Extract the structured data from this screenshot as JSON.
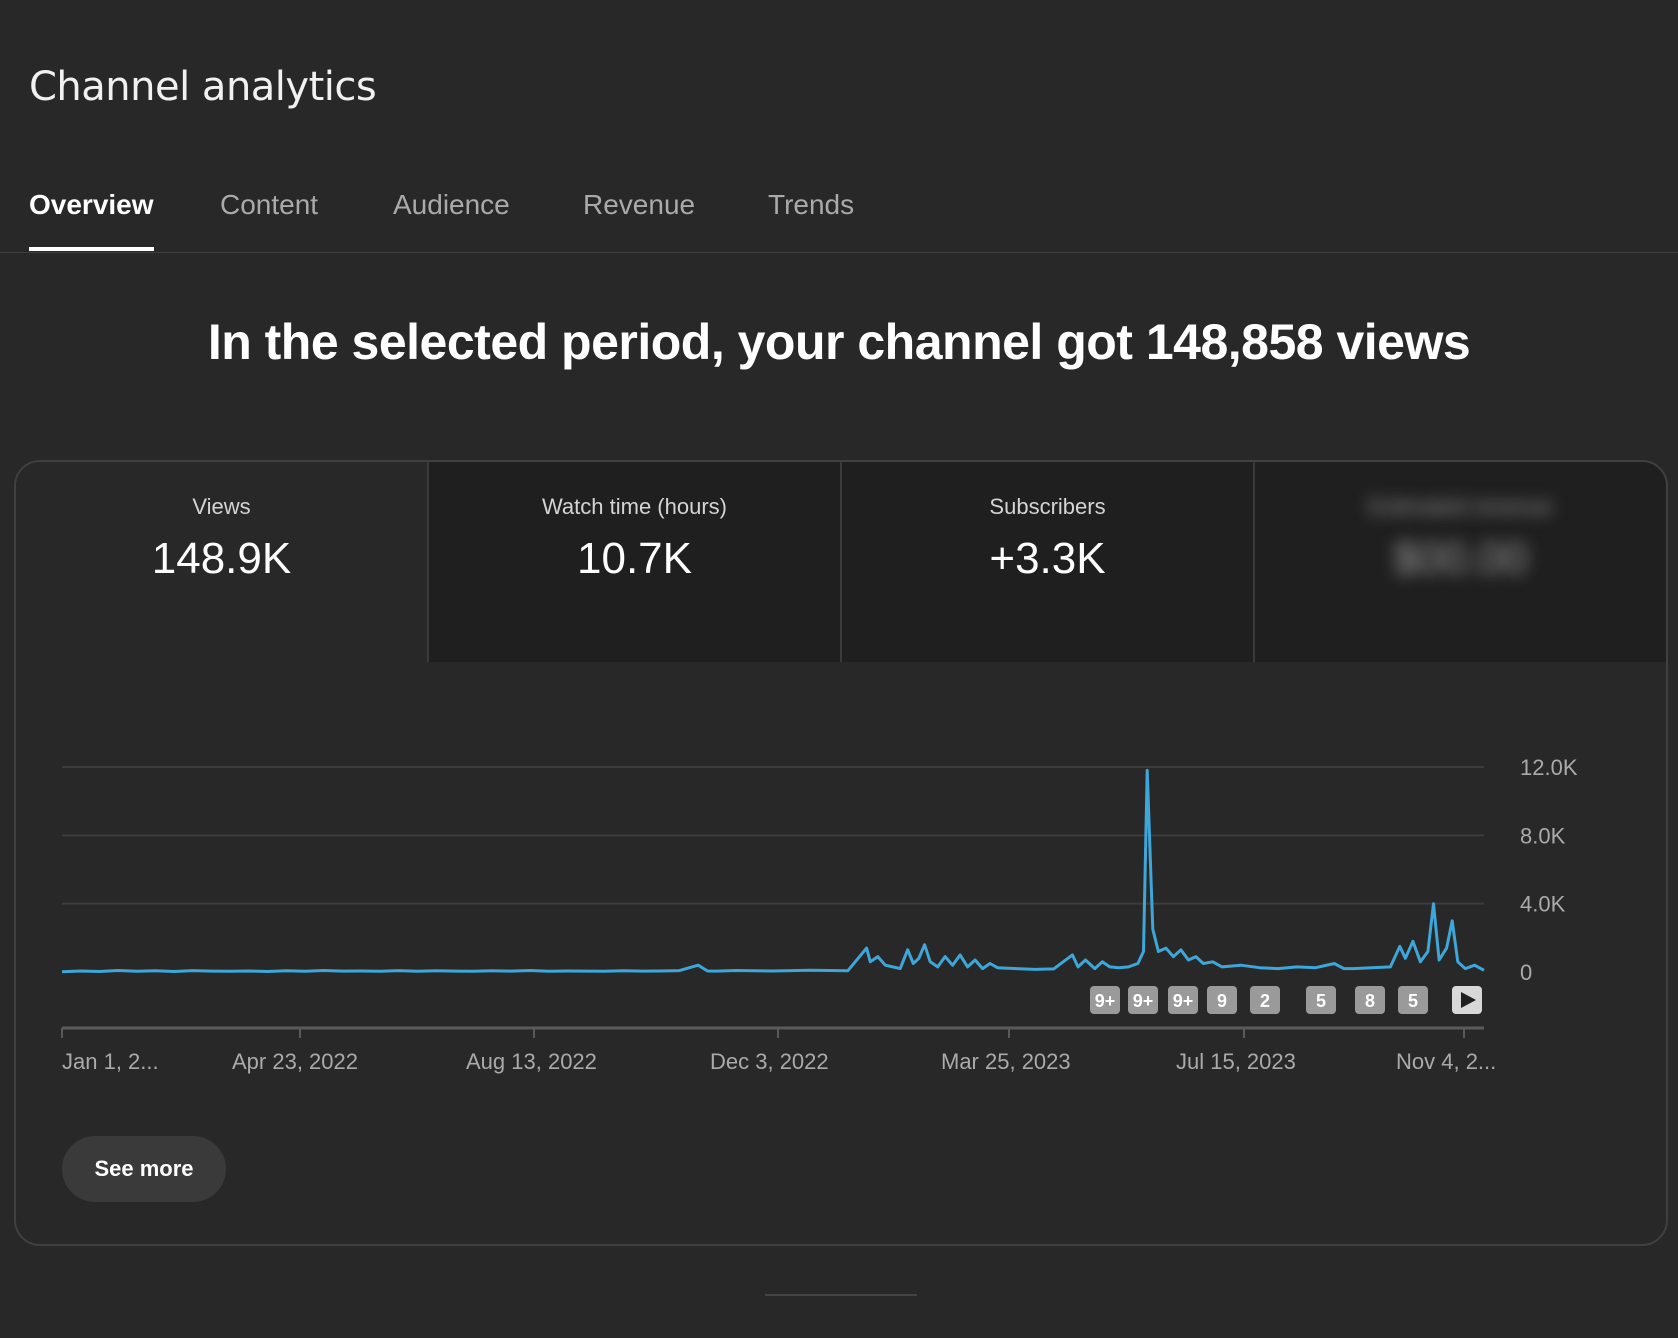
{
  "header": {
    "title": "Channel analytics"
  },
  "tabs": [
    {
      "label": "Overview",
      "active": true
    },
    {
      "label": "Content",
      "active": false
    },
    {
      "label": "Audience",
      "active": false
    },
    {
      "label": "Revenue",
      "active": false
    },
    {
      "label": "Trends",
      "active": false
    }
  ],
  "headline": "In the selected period, your channel got 148,858 views",
  "metrics": [
    {
      "label": "Views",
      "value": "148.9K"
    },
    {
      "label": "Watch time (hours)",
      "value": "10.7K"
    },
    {
      "label": "Subscribers",
      "value": "+3.3K"
    },
    {
      "label": "Estimated revenue",
      "value": "$00.00",
      "blurred": true
    }
  ],
  "chart_data": {
    "type": "line",
    "x_range": [
      "2022-01-01",
      "2023-12-31"
    ],
    "x_tick_labels": [
      "Jan 1, 2...",
      "Apr 23, 2022",
      "Aug 13, 2022",
      "Dec 3, 2022",
      "Mar 25, 2023",
      "Jul 15, 2023",
      "Nov 4, 2..."
    ],
    "y_tick_labels": [
      "0",
      "4.0K",
      "8.0K",
      "12.0K"
    ],
    "y_ticks": [
      0,
      4000,
      8000,
      12000
    ],
    "ylim": [
      0,
      12000
    ],
    "grid": true,
    "line_color": "#3ea6d8",
    "series": [
      {
        "values": [
          [
            0,
            20
          ],
          [
            10,
            60
          ],
          [
            20,
            30
          ],
          [
            30,
            90
          ],
          [
            40,
            40
          ],
          [
            50,
            70
          ],
          [
            60,
            30
          ],
          [
            70,
            80
          ],
          [
            80,
            50
          ],
          [
            90,
            40
          ],
          [
            100,
            60
          ],
          [
            110,
            30
          ],
          [
            120,
            70
          ],
          [
            130,
            40
          ],
          [
            140,
            90
          ],
          [
            150,
            50
          ],
          [
            160,
            60
          ],
          [
            170,
            40
          ],
          [
            180,
            80
          ],
          [
            190,
            40
          ],
          [
            200,
            70
          ],
          [
            210,
            50
          ],
          [
            220,
            40
          ],
          [
            230,
            70
          ],
          [
            240,
            50
          ],
          [
            250,
            90
          ],
          [
            260,
            40
          ],
          [
            270,
            60
          ],
          [
            280,
            50
          ],
          [
            290,
            40
          ],
          [
            300,
            70
          ],
          [
            310,
            50
          ],
          [
            320,
            60
          ],
          [
            330,
            80
          ],
          [
            340,
            400
          ],
          [
            345,
            60
          ],
          [
            350,
            50
          ],
          [
            360,
            90
          ],
          [
            370,
            70
          ],
          [
            380,
            60
          ],
          [
            390,
            80
          ],
          [
            400,
            100
          ],
          [
            410,
            90
          ],
          [
            420,
            70
          ],
          [
            430,
            1400
          ],
          [
            432,
            600
          ],
          [
            436,
            900
          ],
          [
            440,
            400
          ],
          [
            448,
            200
          ],
          [
            452,
            1300
          ],
          [
            455,
            500
          ],
          [
            458,
            800
          ],
          [
            461,
            1600
          ],
          [
            464,
            600
          ],
          [
            468,
            300
          ],
          [
            472,
            900
          ],
          [
            476,
            400
          ],
          [
            480,
            1000
          ],
          [
            484,
            300
          ],
          [
            488,
            700
          ],
          [
            492,
            200
          ],
          [
            496,
            500
          ],
          [
            500,
            250
          ],
          [
            510,
            200
          ],
          [
            520,
            150
          ],
          [
            530,
            180
          ],
          [
            540,
            1000
          ],
          [
            543,
            300
          ],
          [
            547,
            700
          ],
          [
            552,
            200
          ],
          [
            556,
            600
          ],
          [
            560,
            300
          ],
          [
            565,
            250
          ],
          [
            570,
            300
          ],
          [
            575,
            500
          ],
          [
            578,
            1200
          ],
          [
            580,
            11800
          ],
          [
            583,
            2500
          ],
          [
            586,
            1200
          ],
          [
            590,
            1400
          ],
          [
            594,
            900
          ],
          [
            598,
            1300
          ],
          [
            602,
            700
          ],
          [
            606,
            900
          ],
          [
            610,
            500
          ],
          [
            615,
            600
          ],
          [
            620,
            300
          ],
          [
            630,
            400
          ],
          [
            640,
            250
          ],
          [
            650,
            200
          ],
          [
            660,
            300
          ],
          [
            670,
            250
          ],
          [
            680,
            500
          ],
          [
            685,
            200
          ],
          [
            690,
            200
          ],
          [
            700,
            250
          ],
          [
            710,
            300
          ],
          [
            715,
            1500
          ],
          [
            718,
            800
          ],
          [
            722,
            1800
          ],
          [
            726,
            600
          ],
          [
            730,
            1200
          ],
          [
            733,
            4000
          ],
          [
            736,
            700
          ],
          [
            740,
            1400
          ],
          [
            743,
            3000
          ],
          [
            746,
            600
          ],
          [
            750,
            200
          ],
          [
            755,
            400
          ],
          [
            760,
            100
          ]
        ]
      }
    ],
    "timeline_markers": [
      "9+",
      "9+",
      "9+",
      "9",
      "2",
      "5",
      "8",
      "5"
    ],
    "timeline_play": true
  },
  "actions": {
    "see_more": "See more"
  }
}
